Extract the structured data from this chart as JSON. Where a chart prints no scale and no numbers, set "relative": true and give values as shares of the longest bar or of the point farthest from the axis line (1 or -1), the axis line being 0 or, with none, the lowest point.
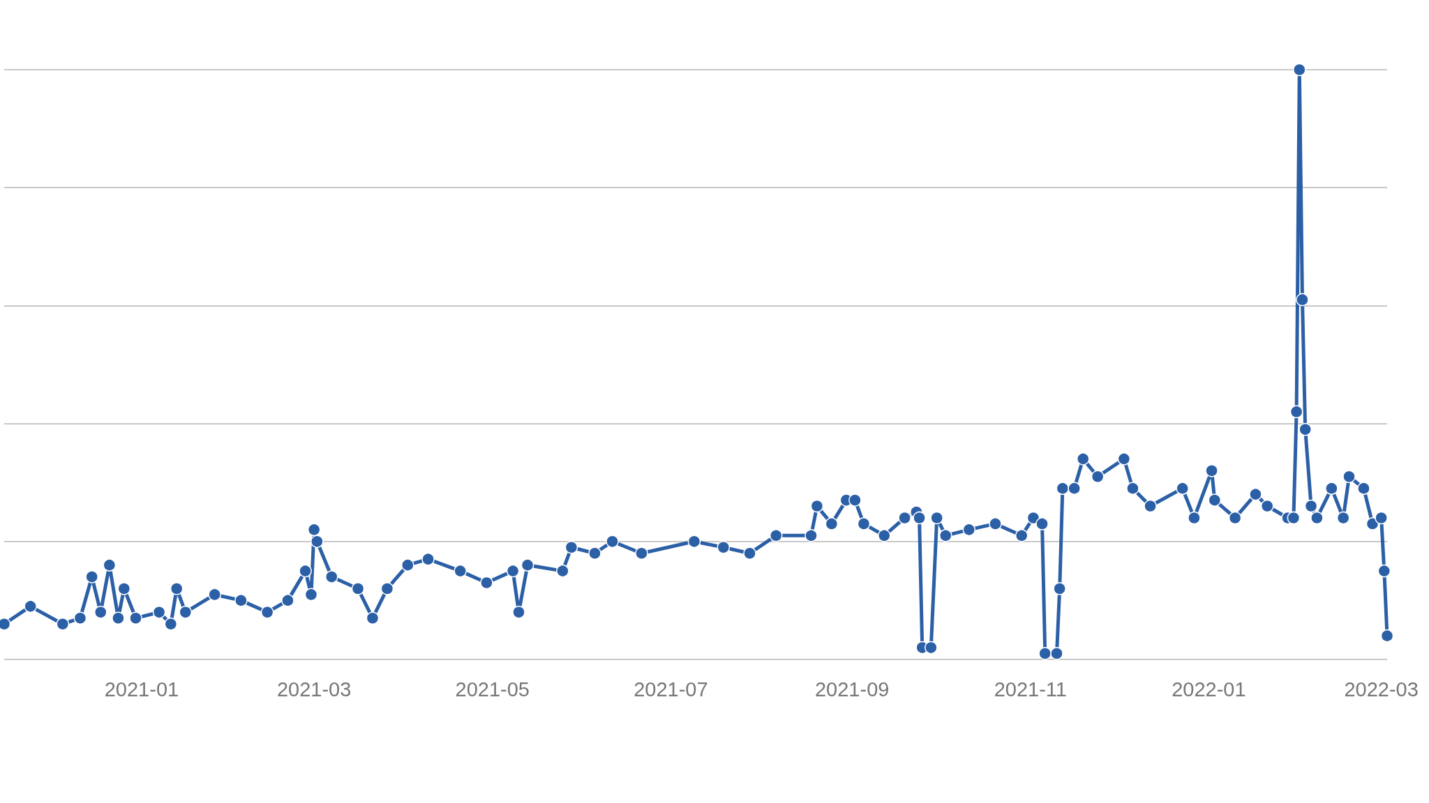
{
  "chart_data": {
    "type": "line",
    "relative": true,
    "grid": "y",
    "marker": "circle",
    "line_style": "solid",
    "xlim": [
      "2020-11-15",
      "2022-03-03"
    ],
    "xticks": [
      "2021-01",
      "2021-03",
      "2021-05",
      "2021-07",
      "2021-09",
      "2021-11",
      "2022-01",
      "2022-03"
    ],
    "x": [
      "2020-11-15",
      "2020-11-24",
      "2020-12-05",
      "2020-12-11",
      "2020-12-15",
      "2020-12-18",
      "2020-12-21",
      "2020-12-24",
      "2020-12-26",
      "2020-12-30",
      "2021-01-07",
      "2021-01-11",
      "2021-01-13",
      "2021-01-16",
      "2021-01-26",
      "2021-02-04",
      "2021-02-13",
      "2021-02-20",
      "2021-02-26",
      "2021-02-28",
      "2021-03-01",
      "2021-03-02",
      "2021-03-07",
      "2021-03-16",
      "2021-03-21",
      "2021-03-26",
      "2021-04-02",
      "2021-04-09",
      "2021-04-20",
      "2021-04-29",
      "2021-05-08",
      "2021-05-10",
      "2021-05-13",
      "2021-05-25",
      "2021-05-28",
      "2021-06-05",
      "2021-06-11",
      "2021-06-21",
      "2021-07-09",
      "2021-07-19",
      "2021-07-28",
      "2021-08-06",
      "2021-08-18",
      "2021-08-20",
      "2021-08-25",
      "2021-08-30",
      "2021-09-02",
      "2021-09-05",
      "2021-09-12",
      "2021-09-19",
      "2021-09-23",
      "2021-09-24",
      "2021-09-25",
      "2021-09-28",
      "2021-09-30",
      "2021-10-03",
      "2021-10-11",
      "2021-10-20",
      "2021-10-29",
      "2021-11-02",
      "2021-11-05",
      "2021-11-06",
      "2021-11-10",
      "2021-11-11",
      "2021-11-12",
      "2021-11-16",
      "2021-11-19",
      "2021-11-24",
      "2021-12-03",
      "2021-12-06",
      "2021-12-12",
      "2021-12-23",
      "2021-12-27",
      "2022-01-02",
      "2022-01-03",
      "2022-01-10",
      "2022-01-17",
      "2022-01-21",
      "2022-01-28",
      "2022-01-30",
      "2022-01-31",
      "2022-02-01",
      "2022-02-02",
      "2022-02-03",
      "2022-02-05",
      "2022-02-07",
      "2022-02-12",
      "2022-02-16",
      "2022-02-18",
      "2022-02-23",
      "2022-02-26",
      "2022-03-01",
      "2022-03-02",
      "2022-03-03"
    ],
    "series": [
      {
        "color": "#2b5fa6",
        "values": [
          0.06,
          0.09,
          0.06,
          0.07,
          0.14,
          0.08,
          0.16,
          0.07,
          0.12,
          0.07,
          0.08,
          0.06,
          0.12,
          0.08,
          0.11,
          0.1,
          0.08,
          0.1,
          0.15,
          0.11,
          0.22,
          0.2,
          0.14,
          0.12,
          0.07,
          0.12,
          0.16,
          0.17,
          0.15,
          0.13,
          0.15,
          0.08,
          0.16,
          0.15,
          0.19,
          0.18,
          0.2,
          0.18,
          0.2,
          0.19,
          0.18,
          0.21,
          0.21,
          0.26,
          0.23,
          0.27,
          0.27,
          0.23,
          0.21,
          0.24,
          0.25,
          0.24,
          0.02,
          0.02,
          0.24,
          0.21,
          0.22,
          0.23,
          0.21,
          0.24,
          0.23,
          0.01,
          0.01,
          0.12,
          0.29,
          0.29,
          0.34,
          0.31,
          0.34,
          0.29,
          0.26,
          0.29,
          0.24,
          0.32,
          0.27,
          0.24,
          0.28,
          0.26,
          0.24,
          0.24,
          0.42,
          1,
          0.61,
          0.39,
          0.26,
          0.24,
          0.29,
          0.24,
          0.31,
          0.29,
          0.23,
          0.24,
          0.15,
          0.04
        ]
      }
    ]
  }
}
